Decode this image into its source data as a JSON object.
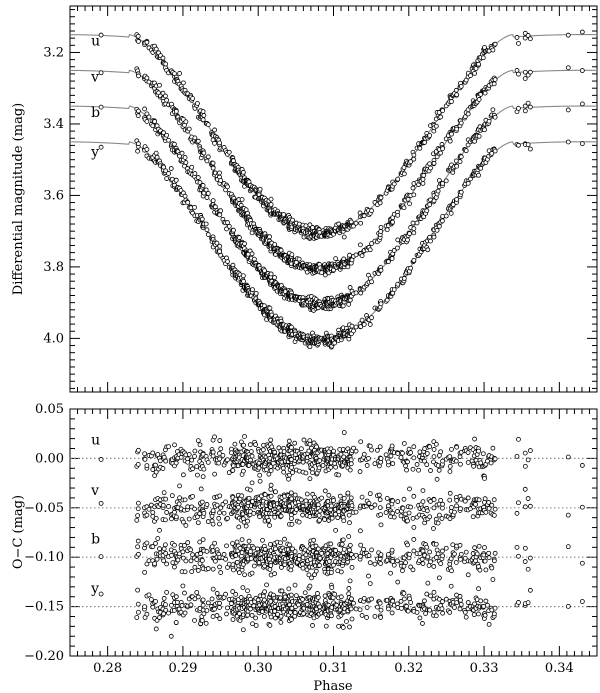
{
  "chart_data": [
    {
      "type": "scatter",
      "title": "",
      "xlabel": "",
      "ylabel": "Differential magnitude (mag)",
      "xlim": [
        0.275,
        0.345
      ],
      "ylim": [
        4.15,
        3.07
      ],
      "y_inverted": true,
      "xticks": [
        0.28,
        0.29,
        0.3,
        0.31,
        0.32,
        0.33,
        0.34
      ],
      "xtick_labels": [
        "",
        "",
        "",
        "",
        "",
        "",
        ""
      ],
      "yticks": [
        3.2,
        3.4,
        3.6,
        3.8,
        4.0
      ],
      "ytick_labels": [
        "3.2",
        "3.4",
        "3.6",
        "3.8",
        "4.0"
      ],
      "grid": false,
      "marker": "open-circle",
      "model_curve": {
        "shape": "eclipse",
        "baselines": {
          "u": 3.15,
          "v": 3.25,
          "b": 3.35,
          "y": 3.45
        },
        "depth": 0.556,
        "center_phase": 0.3083,
        "half_width_phase": 0.0255
      },
      "series": [
        {
          "name": "u",
          "offset": 3.15
        },
        {
          "name": "v",
          "offset": 3.25
        },
        {
          "name": "b",
          "offset": 3.35
        },
        {
          "name": "y",
          "offset": 3.45
        }
      ],
      "observed_phases_sample": [
        0.279,
        0.284,
        0.285,
        0.286,
        0.287,
        0.288,
        0.289,
        0.29,
        0.291,
        0.292,
        0.293,
        0.294,
        0.295,
        0.296,
        0.297,
        0.298,
        0.299,
        0.3,
        0.301,
        0.302,
        0.303,
        0.304,
        0.305,
        0.306,
        0.307,
        0.308,
        0.309,
        0.31,
        0.311,
        0.312,
        0.313,
        0.315,
        0.316,
        0.318,
        0.319,
        0.32,
        0.321,
        0.322,
        0.323,
        0.324,
        0.325,
        0.326,
        0.327,
        0.328,
        0.329,
        0.33,
        0.331,
        0.334,
        0.336,
        0.341,
        0.343
      ],
      "band_label_positions": {
        "u": 3.17,
        "v": 3.27,
        "b": 3.37,
        "y": 3.48
      }
    },
    {
      "type": "scatter",
      "title": "",
      "xlabel": "Phase",
      "ylabel": "O−C (mag)",
      "xlim": [
        0.275,
        0.345
      ],
      "ylim": [
        -0.2,
        0.05
      ],
      "xticks": [
        0.28,
        0.29,
        0.3,
        0.31,
        0.32,
        0.33,
        0.34
      ],
      "xtick_labels": [
        "0.28",
        "0.29",
        "0.30",
        "0.31",
        "0.32",
        "0.33",
        "0.34"
      ],
      "yticks": [
        0.05,
        0.0,
        -0.05,
        -0.1,
        -0.15,
        -0.2
      ],
      "ytick_labels": [
        "0.05",
        "0.00",
        "−0.05",
        "−0.10",
        "−0.15",
        "−0.20"
      ],
      "grid": false,
      "marker": "open-circle",
      "reference_lines": {
        "style": "dotted",
        "values": [
          0.0,
          -0.05,
          -0.1,
          -0.15
        ]
      },
      "residual_scatter_approx": 0.008,
      "series": [
        {
          "name": "u",
          "offset": 0.0
        },
        {
          "name": "v",
          "offset": -0.05
        },
        {
          "name": "b",
          "offset": -0.1
        },
        {
          "name": "y",
          "offset": -0.15
        }
      ],
      "band_label_positions": {
        "u": 0.018,
        "v": -0.033,
        "b": -0.082,
        "y": -0.132
      }
    }
  ]
}
